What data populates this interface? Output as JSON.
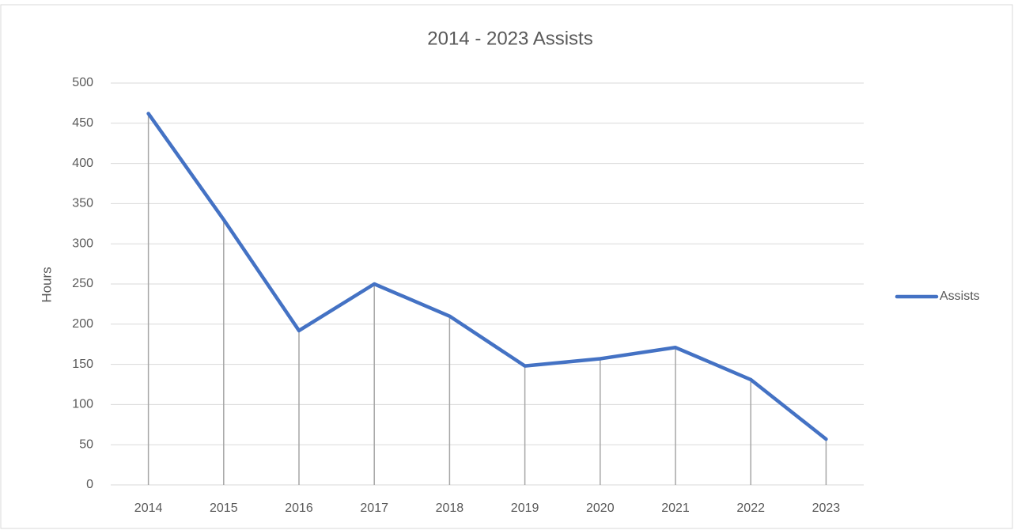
{
  "chart_data": {
    "type": "line",
    "title": "2014 - 2023 Assists",
    "y_label": "Hours",
    "categories": [
      "2014",
      "2015",
      "2016",
      "2017",
      "2018",
      "2019",
      "2020",
      "2021",
      "2022",
      "2023"
    ],
    "series": [
      {
        "name": "Assists",
        "color": "#4472c4",
        "values": [
          462,
          330,
          192,
          250,
          210,
          148,
          157,
          171,
          131,
          57
        ]
      }
    ],
    "ylim": [
      0,
      500
    ],
    "yticks": [
      0,
      50,
      100,
      150,
      200,
      250,
      300,
      350,
      400,
      450,
      500
    ],
    "grid": true,
    "drop_lines": true,
    "legend": "right"
  }
}
